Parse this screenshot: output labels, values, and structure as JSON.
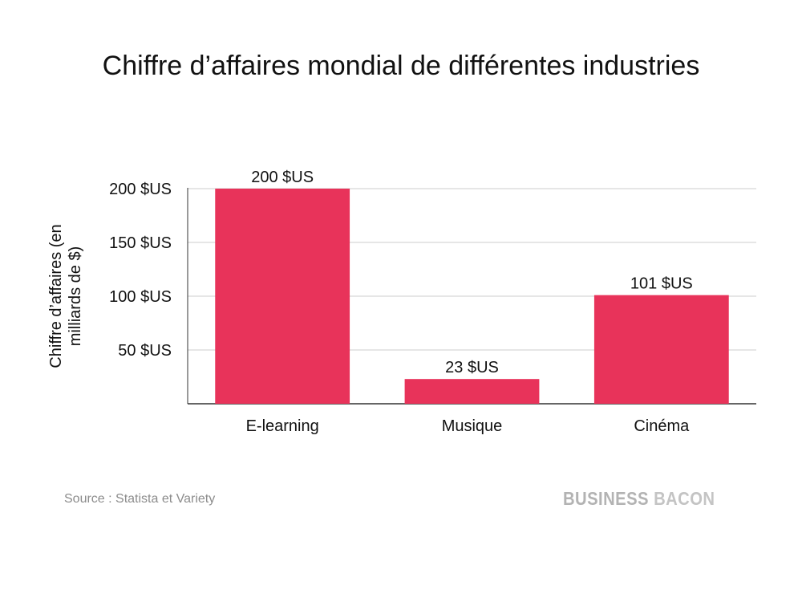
{
  "chart_data": {
    "type": "bar",
    "title": "Chiffre d’affaires mondial de différentes industries",
    "ylabel_lines": [
      "Chiffre d’affaires (en",
      "milliards de $)"
    ],
    "xlabel": "",
    "categories": [
      "E-learning",
      "Musique",
      "Cinéma"
    ],
    "values": [
      200,
      23,
      101
    ],
    "value_labels": [
      "200 $US",
      "23 $US",
      "101 $US"
    ],
    "ylim": [
      0,
      200
    ],
    "yticks": [
      50,
      100,
      150,
      200
    ],
    "ytick_labels": [
      "50 $US",
      "100 $US",
      "150 $US",
      "200 $US"
    ],
    "grid": true,
    "bar_color": "#e8335a",
    "grid_color": "#cccccc"
  },
  "source": "Source : Statista et Variety",
  "logo": {
    "word1": "BUSINESS",
    "word2": "BACON"
  }
}
